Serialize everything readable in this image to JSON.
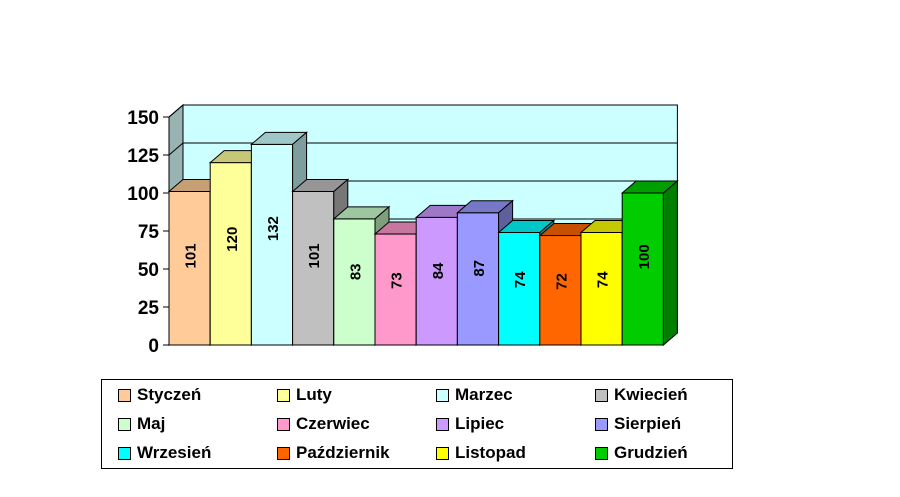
{
  "chart_data": {
    "type": "bar",
    "categories": [
      "Styczeń",
      "Luty",
      "Marzec",
      "Kwiecień",
      "Maj",
      "Czerwiec",
      "Lipiec",
      "Sierpień",
      "Wrzesień",
      "Październik",
      "Listopad",
      "Grudzień"
    ],
    "values": [
      101,
      120,
      132,
      101,
      83,
      73,
      84,
      87,
      74,
      72,
      74,
      100
    ],
    "data_labels": [
      "101",
      "120",
      "132",
      "101",
      "83",
      "73",
      "84",
      "87",
      "74",
      "72",
      "74",
      "100"
    ],
    "colors": [
      "#FFCC99",
      "#FFFF99",
      "#CCFFFF",
      "#C0C0C0",
      "#CCFFCC",
      "#FF99CC",
      "#CC99FF",
      "#9999FF",
      "#00FFFF",
      "#FF6600",
      "#FFFF00",
      "#00CC00"
    ],
    "ylim": [
      0,
      150
    ],
    "yticks": [
      0,
      25,
      50,
      75,
      100,
      125,
      150
    ],
    "ytick_labels": [
      "0",
      "25",
      "50",
      "75",
      "100",
      "125",
      "150"
    ],
    "grid": true,
    "legend_position": "bottom",
    "wall_color": "#CCFFFF",
    "side_wall_color": "#99B2B2",
    "title": "",
    "xlabel": "",
    "ylabel": ""
  }
}
